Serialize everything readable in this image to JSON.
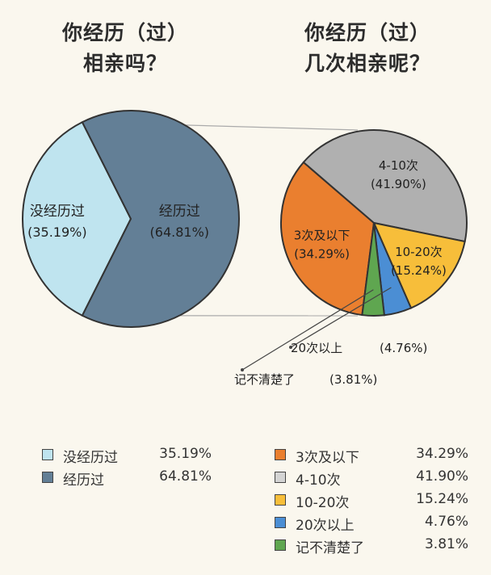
{
  "chart_data": [
    {
      "type": "pie",
      "title_lines": [
        "你经历（过）",
        "相亲吗？"
      ],
      "slices": [
        {
          "label": "没经历过",
          "value": 35.19,
          "value_text": "(35.19%)",
          "color": "#bfe4ef"
        },
        {
          "label": "经历过",
          "value": 64.81,
          "value_text": "(64.81%)",
          "color": "#637f96"
        }
      ],
      "legend": [
        {
          "label": "没经历过",
          "value": "35.19%",
          "color": "#bfe4ef"
        },
        {
          "label": "经历过",
          "value": "64.81%",
          "color": "#637f96"
        }
      ]
    },
    {
      "type": "pie",
      "title_lines": [
        "你经历（过）",
        "几次相亲呢？"
      ],
      "slices": [
        {
          "label": "3次及以下",
          "value": 34.29,
          "value_text": "(34.29%)",
          "color": "#ea7f2f"
        },
        {
          "label": "4-10次",
          "value": 41.9,
          "value_text": "(41.90%)",
          "color": "#b0b0b0"
        },
        {
          "label": "10-20次",
          "value": 15.24,
          "value_text": "(15.24%)",
          "color": "#f7be3a"
        },
        {
          "label": "20次以上",
          "value": 4.76,
          "value_text": "(4.76%)",
          "color": "#4b8ed4"
        },
        {
          "label": "记不清楚了",
          "value": 3.81,
          "value_text": "(3.81%)",
          "color": "#5fa650"
        }
      ],
      "legend": [
        {
          "label": "3次及以下",
          "value": "34.29%",
          "color": "#ea7f2f"
        },
        {
          "label": "4-10次",
          "value": "41.90%",
          "color": "#d4d4d4"
        },
        {
          "label": "10-20次",
          "value": "15.24%",
          "color": "#f7be3a"
        },
        {
          "label": "20次以上",
          "value": "4.76%",
          "color": "#4b8ed4"
        },
        {
          "label": "记不清楚了",
          "value": "3.81%",
          "color": "#5fa650"
        }
      ]
    }
  ]
}
